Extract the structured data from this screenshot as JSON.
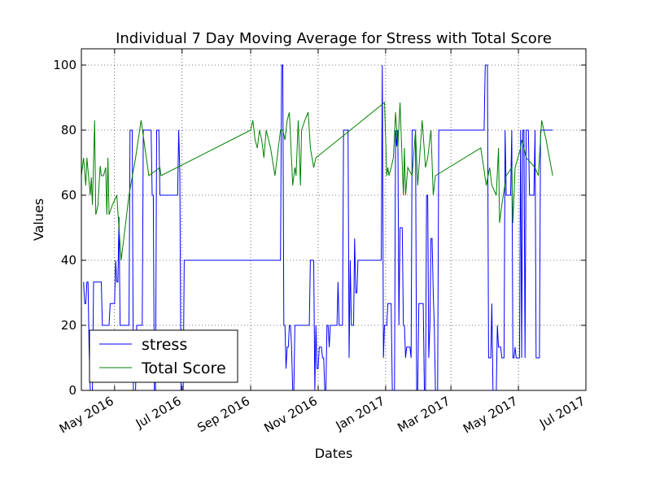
{
  "chart_data": {
    "type": "line",
    "title": "Individual 7 Day Moving Average for Stress with Total Score",
    "xlabel": "Dates",
    "ylabel": "Values",
    "xlim": [
      "2016-04-01",
      "2017-07-01"
    ],
    "ylim": [
      0,
      105
    ],
    "xticks": [
      "2016-05-01",
      "2016-07-01",
      "2016-09-01",
      "2016-11-01",
      "2017-01-01",
      "2017-03-01",
      "2017-05-01",
      "2017-07-01"
    ],
    "xtick_labels": [
      "May 2016",
      "Jul 2016",
      "Sep 2016",
      "Nov 2016",
      "Jan 2017",
      "Mar 2017",
      "May 2017",
      "Jul 2017"
    ],
    "yticks": [
      0,
      20,
      40,
      60,
      80,
      100
    ],
    "grid": true,
    "legend_position": "lower-left",
    "series": [
      {
        "name": "stress",
        "color": "#0000ff",
        "points": [
          [
            "2016-04-03",
            33.3
          ],
          [
            "2016-04-04",
            26.7
          ],
          [
            "2016-04-05",
            26.7
          ],
          [
            "2016-04-06",
            33.3
          ],
          [
            "2016-04-07",
            33.3
          ],
          [
            "2016-04-08",
            13.3
          ],
          [
            "2016-04-09",
            0
          ],
          [
            "2016-04-11",
            0
          ],
          [
            "2016-04-12",
            33.3
          ],
          [
            "2016-04-19",
            33.3
          ],
          [
            "2016-04-20",
            20
          ],
          [
            "2016-04-26",
            20
          ],
          [
            "2016-04-27",
            26.7
          ],
          [
            "2016-05-01",
            26.7
          ],
          [
            "2016-05-02",
            40
          ],
          [
            "2016-05-03",
            33.3
          ],
          [
            "2016-05-04",
            33.3
          ],
          [
            "2016-05-05",
            53.3
          ],
          [
            "2016-05-06",
            20
          ],
          [
            "2016-05-14",
            20
          ],
          [
            "2016-05-15",
            80
          ],
          [
            "2016-05-17",
            80
          ],
          [
            "2016-05-18",
            0
          ],
          [
            "2016-05-20",
            0
          ],
          [
            "2016-05-21",
            20
          ],
          [
            "2016-05-26",
            20
          ],
          [
            "2016-05-27",
            80
          ],
          [
            "2016-06-03",
            80
          ],
          [
            "2016-06-04",
            60
          ],
          [
            "2016-06-05",
            60
          ],
          [
            "2016-06-06",
            0
          ],
          [
            "2016-06-07",
            0
          ],
          [
            "2016-06-08",
            80
          ],
          [
            "2016-06-10",
            80
          ],
          [
            "2016-06-11",
            60
          ],
          [
            "2016-06-27",
            60
          ],
          [
            "2016-06-28",
            80
          ],
          [
            "2016-06-29",
            66.7
          ],
          [
            "2016-06-30",
            0
          ],
          [
            "2016-07-02",
            0
          ],
          [
            "2016-07-03",
            40
          ],
          [
            "2016-09-28",
            40
          ],
          [
            "2016-09-29",
            100
          ],
          [
            "2016-09-30",
            100
          ],
          [
            "2016-10-01",
            20
          ],
          [
            "2016-10-02",
            20
          ],
          [
            "2016-10-03",
            6.7
          ],
          [
            "2016-10-04",
            13.3
          ],
          [
            "2016-10-05",
            13.3
          ],
          [
            "2016-10-06",
            20
          ],
          [
            "2016-10-07",
            20
          ],
          [
            "2016-10-08",
            13.3
          ],
          [
            "2016-10-09",
            0
          ],
          [
            "2016-10-10",
            0
          ],
          [
            "2016-10-11",
            20
          ],
          [
            "2016-10-24",
            20
          ],
          [
            "2016-10-25",
            40
          ],
          [
            "2016-10-28",
            40
          ],
          [
            "2016-10-29",
            0
          ],
          [
            "2016-10-30",
            20
          ],
          [
            "2016-10-31",
            6.7
          ],
          [
            "2016-11-01",
            6.7
          ],
          [
            "2016-11-02",
            13.3
          ],
          [
            "2016-11-04",
            13.3
          ],
          [
            "2016-11-05",
            10
          ],
          [
            "2016-11-06",
            10
          ],
          [
            "2016-11-07",
            0
          ],
          [
            "2016-11-08",
            0
          ],
          [
            "2016-11-09",
            20
          ],
          [
            "2016-11-10",
            20
          ],
          [
            "2016-11-11",
            13.3
          ],
          [
            "2016-11-12",
            20
          ],
          [
            "2016-11-18",
            20
          ],
          [
            "2016-11-19",
            33.3
          ],
          [
            "2016-11-20",
            20
          ],
          [
            "2016-11-23",
            20
          ],
          [
            "2016-11-24",
            80
          ],
          [
            "2016-11-28",
            80
          ],
          [
            "2016-11-29",
            10
          ],
          [
            "2016-11-30",
            40
          ],
          [
            "2016-12-01",
            20
          ],
          [
            "2016-12-03",
            20
          ],
          [
            "2016-12-04",
            46.7
          ],
          [
            "2016-12-05",
            30
          ],
          [
            "2016-12-06",
            30
          ],
          [
            "2016-12-07",
            40
          ],
          [
            "2016-12-28",
            40
          ],
          [
            "2016-12-29",
            100
          ],
          [
            "2016-12-30",
            10
          ],
          [
            "2016-12-31",
            20
          ],
          [
            "2017-01-02",
            20
          ],
          [
            "2017-01-03",
            26.7
          ],
          [
            "2017-01-06",
            26.7
          ],
          [
            "2017-01-07",
            0
          ],
          [
            "2017-01-09",
            0
          ],
          [
            "2017-01-10",
            80
          ],
          [
            "2017-01-11",
            75
          ],
          [
            "2017-01-12",
            80
          ],
          [
            "2017-01-13",
            20
          ],
          [
            "2017-01-14",
            50
          ],
          [
            "2017-01-16",
            50
          ],
          [
            "2017-01-17",
            20
          ],
          [
            "2017-01-18",
            20
          ],
          [
            "2017-01-19",
            10
          ],
          [
            "2017-01-20",
            13.3
          ],
          [
            "2017-01-23",
            13.3
          ],
          [
            "2017-01-24",
            10
          ],
          [
            "2017-01-25",
            80
          ],
          [
            "2017-01-28",
            80
          ],
          [
            "2017-01-29",
            0
          ],
          [
            "2017-01-30",
            0
          ],
          [
            "2017-01-31",
            26.7
          ],
          [
            "2017-02-04",
            26.7
          ],
          [
            "2017-02-05",
            0
          ],
          [
            "2017-02-06",
            0
          ],
          [
            "2017-02-07",
            60
          ],
          [
            "2017-02-08",
            60
          ],
          [
            "2017-02-09",
            10
          ],
          [
            "2017-02-10",
            20
          ],
          [
            "2017-02-11",
            46.7
          ],
          [
            "2017-02-12",
            46.7
          ],
          [
            "2017-02-13",
            30
          ],
          [
            "2017-02-14",
            20
          ],
          [
            "2017-02-15",
            0
          ],
          [
            "2017-02-17",
            0
          ],
          [
            "2017-02-18",
            80
          ],
          [
            "2017-03-31",
            80
          ],
          [
            "2017-04-01",
            100
          ],
          [
            "2017-04-03",
            100
          ],
          [
            "2017-04-04",
            10
          ],
          [
            "2017-04-06",
            10
          ],
          [
            "2017-04-07",
            26.7
          ],
          [
            "2017-04-08",
            0
          ],
          [
            "2017-04-11",
            0
          ],
          [
            "2017-04-12",
            20
          ],
          [
            "2017-04-13",
            13.3
          ],
          [
            "2017-04-15",
            13.3
          ],
          [
            "2017-04-16",
            10
          ],
          [
            "2017-04-18",
            10
          ],
          [
            "2017-04-19",
            80
          ],
          [
            "2017-04-20",
            60
          ],
          [
            "2017-04-24",
            60
          ],
          [
            "2017-04-25",
            80
          ],
          [
            "2017-04-26",
            10
          ],
          [
            "2017-04-27",
            10
          ],
          [
            "2017-04-28",
            13.3
          ],
          [
            "2017-04-29",
            10
          ],
          [
            "2017-05-02",
            10
          ],
          [
            "2017-05-03",
            80
          ],
          [
            "2017-05-04",
            10
          ],
          [
            "2017-05-05",
            80
          ],
          [
            "2017-05-06",
            80
          ],
          [
            "2017-05-07",
            10
          ],
          [
            "2017-05-08",
            80
          ],
          [
            "2017-05-10",
            80
          ],
          [
            "2017-05-11",
            60
          ],
          [
            "2017-05-15",
            60
          ],
          [
            "2017-05-16",
            80
          ],
          [
            "2017-05-17",
            10
          ],
          [
            "2017-05-20",
            10
          ],
          [
            "2017-05-21",
            80
          ],
          [
            "2017-06-01",
            80
          ]
        ]
      },
      {
        "name": "Total Score",
        "color": "#008000",
        "points": [
          [
            "2016-04-01",
            66
          ],
          [
            "2016-04-03",
            71.5
          ],
          [
            "2016-04-05",
            63
          ],
          [
            "2016-04-06",
            71.5
          ],
          [
            "2016-04-09",
            60
          ],
          [
            "2016-04-10",
            65.5
          ],
          [
            "2016-04-11",
            57
          ],
          [
            "2016-04-13",
            83
          ],
          [
            "2016-04-14",
            54
          ],
          [
            "2016-04-16",
            57
          ],
          [
            "2016-04-18",
            69
          ],
          [
            "2016-04-19",
            66
          ],
          [
            "2016-04-21",
            66
          ],
          [
            "2016-04-23",
            68.5
          ],
          [
            "2016-04-24",
            54
          ],
          [
            "2016-04-25",
            71.5
          ],
          [
            "2016-04-26",
            54
          ],
          [
            "2016-04-29",
            57
          ],
          [
            "2016-05-03",
            60
          ],
          [
            "2016-05-07",
            40
          ],
          [
            "2016-05-14",
            60
          ],
          [
            "2016-05-20",
            71.5
          ],
          [
            "2016-05-25",
            83
          ],
          [
            "2016-06-01",
            66
          ],
          [
            "2016-06-11",
            68.5
          ],
          [
            "2016-06-12",
            66
          ],
          [
            "2016-09-01",
            80
          ],
          [
            "2016-09-03",
            83
          ],
          [
            "2016-09-05",
            77
          ],
          [
            "2016-09-07",
            74.5
          ],
          [
            "2016-09-09",
            80
          ],
          [
            "2016-09-11",
            77
          ],
          [
            "2016-09-13",
            71.5
          ],
          [
            "2016-09-15",
            80
          ],
          [
            "2016-09-19",
            74.5
          ],
          [
            "2016-09-23",
            66
          ],
          [
            "2016-09-26",
            74.5
          ],
          [
            "2016-09-28",
            80
          ],
          [
            "2016-09-30",
            80
          ],
          [
            "2016-10-02",
            77
          ],
          [
            "2016-10-04",
            83
          ],
          [
            "2016-10-06",
            85.5
          ],
          [
            "2016-10-09",
            63
          ],
          [
            "2016-10-11",
            68.5
          ],
          [
            "2016-10-12",
            66
          ],
          [
            "2016-10-14",
            83
          ],
          [
            "2016-10-16",
            63
          ],
          [
            "2016-10-17",
            80
          ],
          [
            "2016-10-20",
            83
          ],
          [
            "2016-10-23",
            85.5
          ],
          [
            "2016-10-25",
            74.5
          ],
          [
            "2016-10-28",
            68.5
          ],
          [
            "2016-10-30",
            71.5
          ],
          [
            "2016-12-31",
            88.5
          ],
          [
            "2016-11-30",
            80
          ],
          [
            "2017-01-02",
            66
          ],
          [
            "2017-01-03",
            68.5
          ],
          [
            "2017-01-04",
            66
          ],
          [
            "2017-01-06",
            68.5
          ],
          [
            "2017-01-08",
            71.5
          ],
          [
            "2017-01-10",
            85.5
          ],
          [
            "2017-01-12",
            74.5
          ],
          [
            "2017-01-14",
            88.5
          ],
          [
            "2017-01-17",
            60
          ],
          [
            "2017-01-18",
            74.5
          ],
          [
            "2017-01-19",
            60
          ],
          [
            "2017-01-21",
            68.5
          ],
          [
            "2017-01-25",
            66
          ],
          [
            "2017-01-28",
            80
          ],
          [
            "2017-01-30",
            63
          ],
          [
            "2017-02-03",
            83
          ],
          [
            "2017-02-06",
            68.5
          ],
          [
            "2017-02-08",
            71.5
          ],
          [
            "2017-02-11",
            80
          ],
          [
            "2017-02-13",
            60
          ],
          [
            "2017-02-15",
            66
          ],
          [
            "2017-03-28",
            74.5
          ],
          [
            "2017-04-02",
            63
          ],
          [
            "2017-04-05",
            68.5
          ],
          [
            "2017-04-07",
            63
          ],
          [
            "2017-04-11",
            60
          ],
          [
            "2017-04-13",
            74.5
          ],
          [
            "2017-04-14",
            51.5
          ],
          [
            "2017-04-16",
            57
          ],
          [
            "2017-04-20",
            66
          ],
          [
            "2017-04-25",
            68.5
          ],
          [
            "2017-04-26",
            51.5
          ],
          [
            "2017-04-28",
            68.5
          ],
          [
            "2017-05-03",
            74.5
          ],
          [
            "2017-05-04",
            77
          ],
          [
            "2017-05-06",
            74.5
          ],
          [
            "2017-05-08",
            71.5
          ],
          [
            "2017-05-16",
            68.5
          ],
          [
            "2017-05-19",
            66
          ],
          [
            "2017-05-22",
            83
          ],
          [
            "2017-05-26",
            77
          ],
          [
            "2017-06-01",
            66
          ]
        ]
      }
    ]
  }
}
